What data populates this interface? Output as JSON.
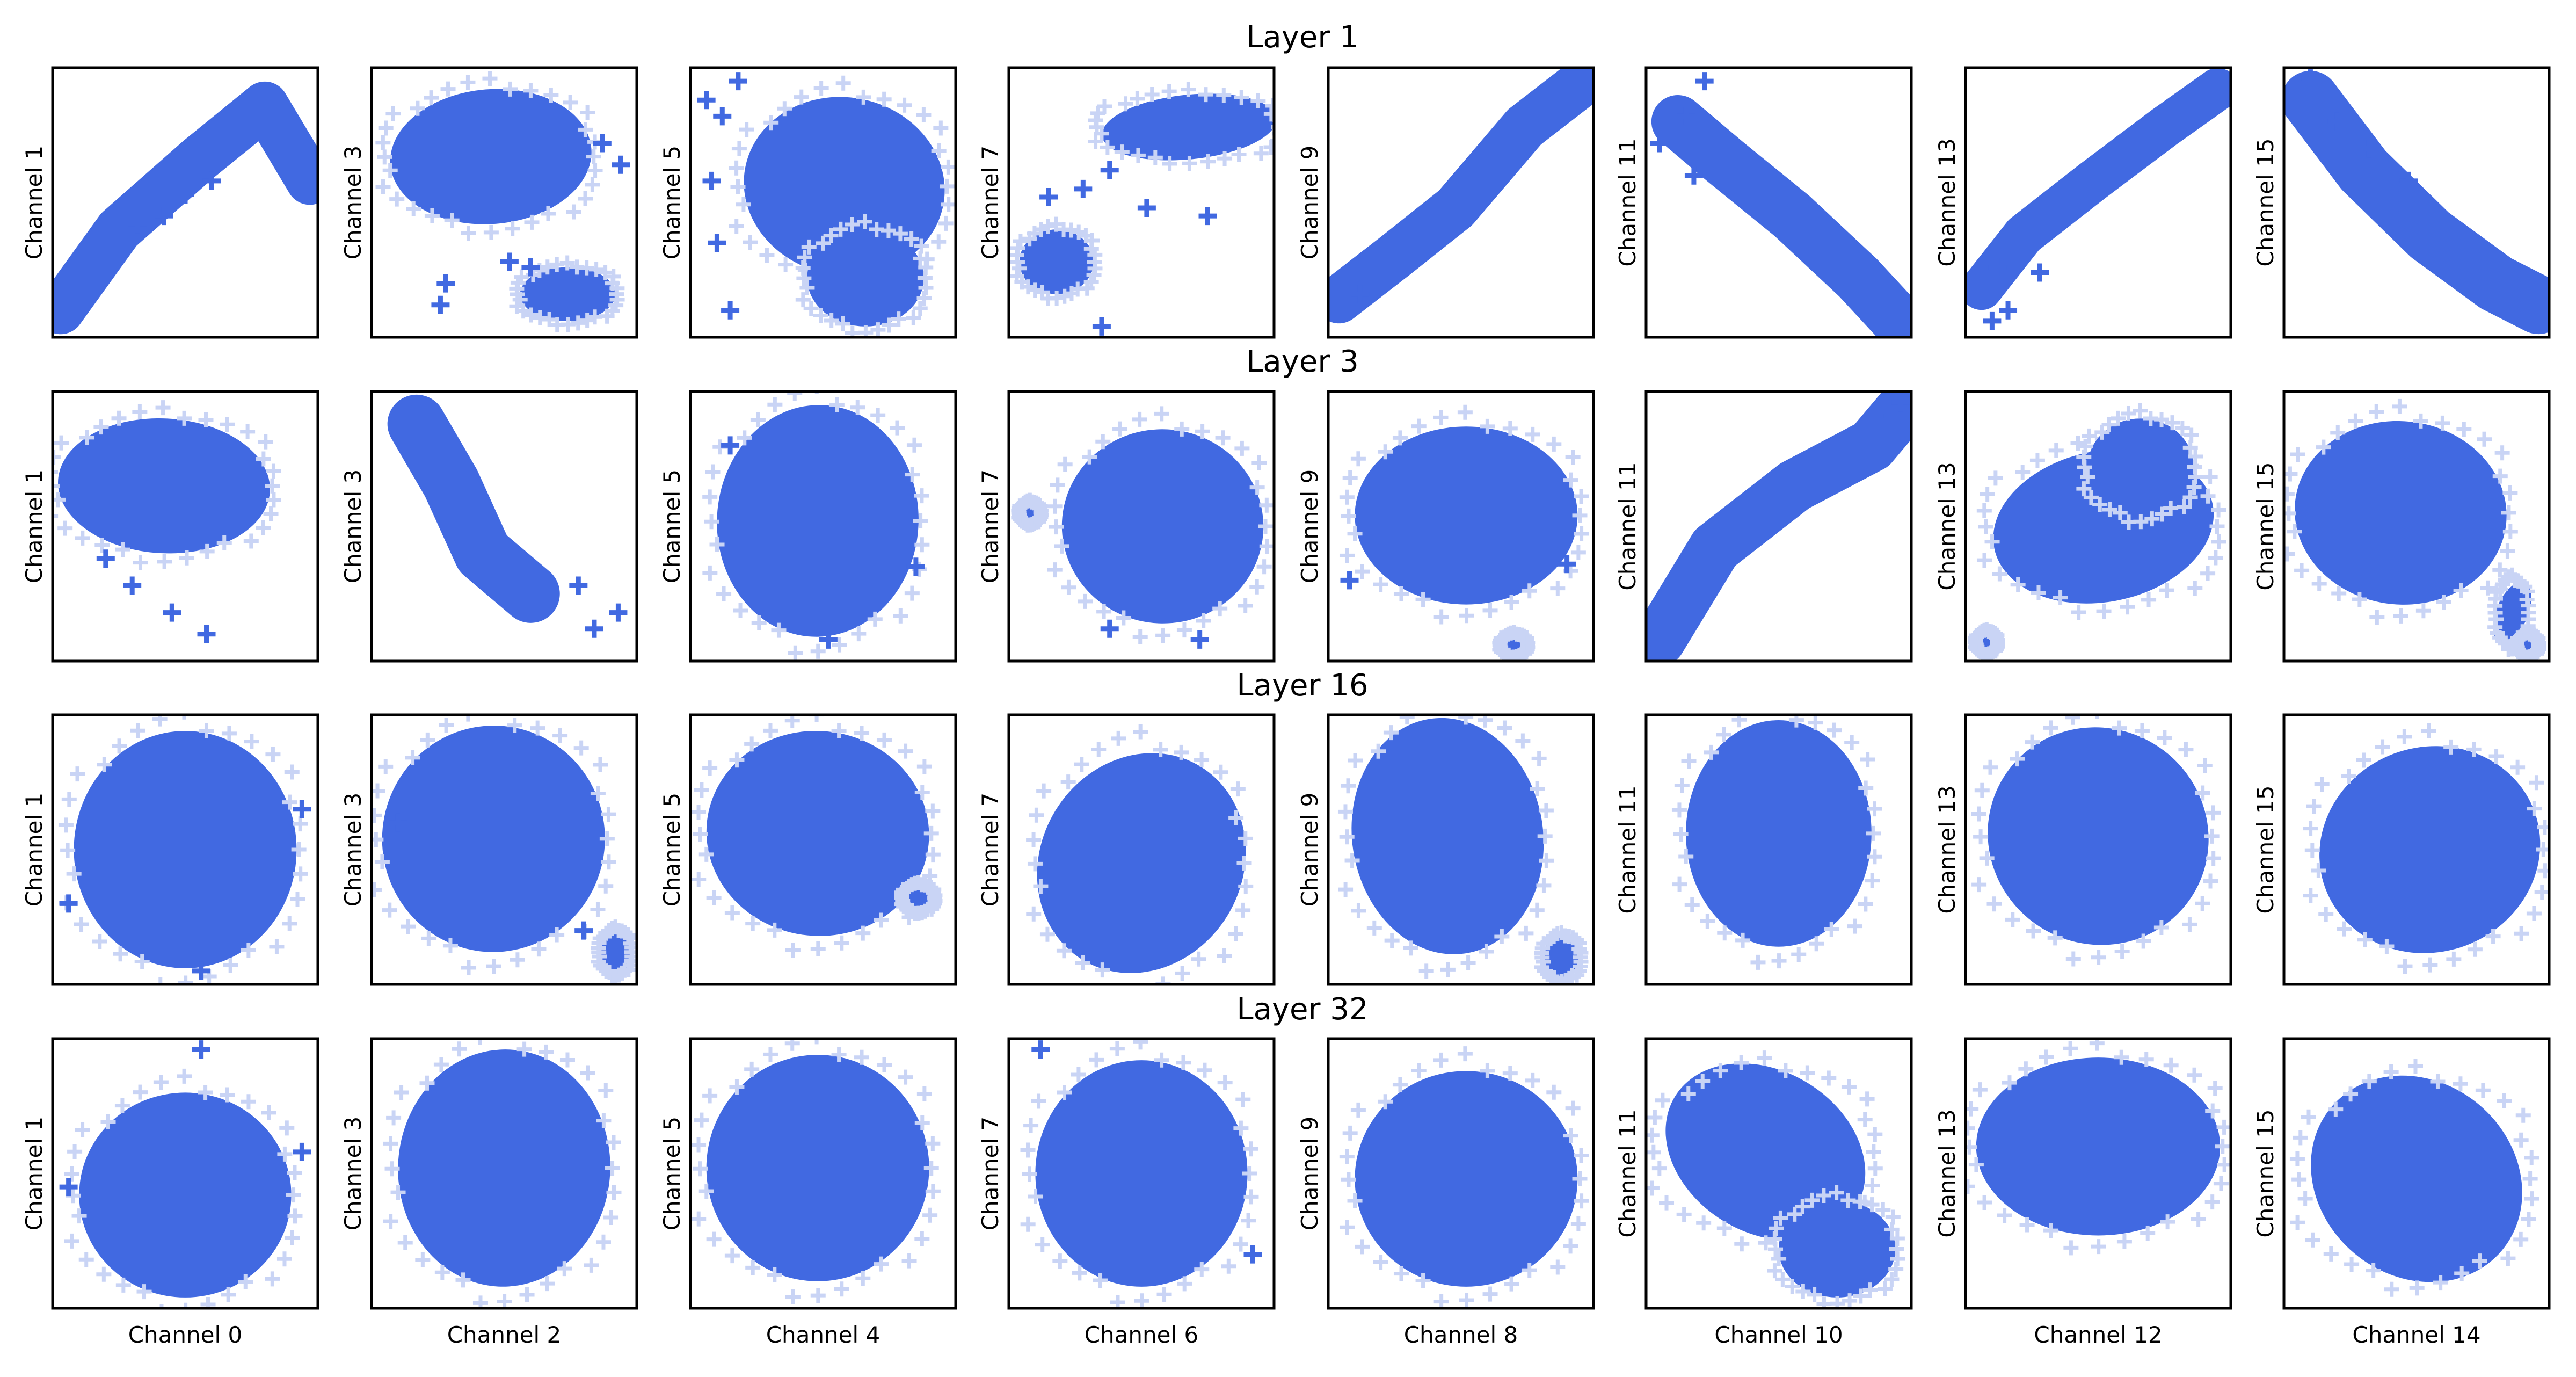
{
  "figure": {
    "marker": "+",
    "point_color": "#4169E1",
    "outlier_color": "#C9D4F5",
    "panel_rows": 4,
    "panel_cols": 8
  },
  "chart_data": {
    "type": "scatter",
    "layers": [
      {
        "title": "Layer 1",
        "panels": [
          {
            "xlabel": "Channel 0",
            "ylabel": "Channel 1",
            "shape": "diagonal curved band from lower-left to upper-right",
            "outliers": "sparse crosses below the band"
          },
          {
            "xlabel": "Channel 2",
            "ylabel": "Channel 3",
            "shape": "large elliptical blob in the upper half with a secondary cluster at lower-right",
            "outliers": "scattered crosses between the clusters"
          },
          {
            "xlabel": "Channel 4",
            "ylabel": "Channel 5",
            "shape": "wide irregular cluster filling most of the panel",
            "outliers": "crosses along the left edge"
          },
          {
            "xlabel": "Channel 6",
            "ylabel": "Channel 7",
            "shape": "main cluster at the top-right with a smaller cluster at the left-bottom",
            "outliers": "isolated crosses in the middle"
          },
          {
            "xlabel": "Channel 8",
            "ylabel": "Channel 9",
            "shape": "thin diagonal band from lower-left to upper-right",
            "outliers": "few crosses near the lower-left"
          },
          {
            "xlabel": "Channel 10",
            "ylabel": "Channel 11",
            "shape": "diagonal band from upper-left to lower-right",
            "outliers": "crosses near the upper-left corner"
          },
          {
            "xlabel": "Channel 12",
            "ylabel": "Channel 13",
            "shape": "thin diagonal band from lower-left to upper-right",
            "outliers": "crosses at the lower-left"
          },
          {
            "xlabel": "Channel 14",
            "ylabel": "Channel 15",
            "shape": "diagonal band from upper-left to lower-right",
            "outliers": "crosses near the upper-left"
          }
        ]
      },
      {
        "title": "Layer 3",
        "panels": [
          {
            "xlabel": "Channel 0",
            "ylabel": "Channel 1",
            "shape": "wide horizontal ellipse in the upper half",
            "outliers": "faint crosses below"
          },
          {
            "xlabel": "Channel 2",
            "ylabel": "Channel 3",
            "shape": "diagonal elongated blob from upper-left to lower-right",
            "outliers": "faint crosses at lower-right"
          },
          {
            "xlabel": "Channel 4",
            "ylabel": "Channel 5",
            "shape": "tall rounded blob",
            "outliers": "faint crosses around the edge"
          },
          {
            "xlabel": "Channel 6",
            "ylabel": "Channel 7",
            "shape": "rounded blob",
            "outliers": "small cluster at the far left"
          },
          {
            "xlabel": "Channel 8",
            "ylabel": "Channel 9",
            "shape": "horizontal ellipse",
            "outliers": "small dense cluster at the bottom-right"
          },
          {
            "xlabel": "Channel 10",
            "ylabel": "Channel 11",
            "shape": "diagonal band from lower-left to upper-right",
            "outliers": "small cluster at the upper-right corner"
          },
          {
            "xlabel": "Channel 12",
            "ylabel": "Channel 13",
            "shape": "irregular blob",
            "outliers": "small cluster at the lower-left"
          },
          {
            "xlabel": "Channel 14",
            "ylabel": "Channel 15",
            "shape": "rounded blob with tail to the lower-right",
            "outliers": "small cluster at the lower-right"
          }
        ]
      },
      {
        "title": "Layer 16",
        "panels": [
          {
            "xlabel": "Channel 0",
            "ylabel": "Channel 1",
            "shape": "round blob",
            "outliers": "faint crosses around the edge"
          },
          {
            "xlabel": "Channel 2",
            "ylabel": "Channel 3",
            "shape": "round blob",
            "outliers": "small cluster at the lower-right"
          },
          {
            "xlabel": "Channel 4",
            "ylabel": "Channel 5",
            "shape": "round blob",
            "outliers": "small cluster at the right"
          },
          {
            "xlabel": "Channel 6",
            "ylabel": "Channel 7",
            "shape": "tilted blob",
            "outliers": "faint crosses around the edge"
          },
          {
            "xlabel": "Channel 8",
            "ylabel": "Channel 9",
            "shape": "round blob",
            "outliers": "small dense cluster at the lower-right"
          },
          {
            "xlabel": "Channel 10",
            "ylabel": "Channel 11",
            "shape": "round blob",
            "outliers": "faint crosses around the edge"
          },
          {
            "xlabel": "Channel 12",
            "ylabel": "Channel 13",
            "shape": "elliptical blob tilted down to the right",
            "outliers": "faint crosses around the edge"
          },
          {
            "xlabel": "Channel 14",
            "ylabel": "Channel 15",
            "shape": "round blob",
            "outliers": "faint crosses around the edge"
          }
        ]
      },
      {
        "title": "Layer 32",
        "panels": [
          {
            "xlabel": "Channel 0",
            "ylabel": "Channel 1",
            "shape": "round blob",
            "outliers": "faint crosses around the edge"
          },
          {
            "xlabel": "Channel 2",
            "ylabel": "Channel 3",
            "shape": "round blob",
            "outliers": "faint crosses around the edge"
          },
          {
            "xlabel": "Channel 4",
            "ylabel": "Channel 5",
            "shape": "round blob",
            "outliers": "faint crosses around the edge"
          },
          {
            "xlabel": "Channel 6",
            "ylabel": "Channel 7",
            "shape": "round blob",
            "outliers": "faint crosses around the edge"
          },
          {
            "xlabel": "Channel 8",
            "ylabel": "Channel 9",
            "shape": "round blob",
            "outliers": "faint crosses around the edge"
          },
          {
            "xlabel": "Channel 10",
            "ylabel": "Channel 11",
            "shape": "blob elongated toward the lower-right",
            "outliers": "faint crosses around the edge"
          },
          {
            "xlabel": "Channel 12",
            "ylabel": "Channel 13",
            "shape": "wide rounded blob",
            "outliers": "faint crosses around the edge"
          },
          {
            "xlabel": "Channel 14",
            "ylabel": "Channel 15",
            "shape": "blob elongated toward the lower-right",
            "outliers": "faint crosses around the edge"
          }
        ]
      }
    ],
    "x_ticks_visible": false,
    "y_ticks_visible": false,
    "grid": false,
    "legend": "none"
  }
}
